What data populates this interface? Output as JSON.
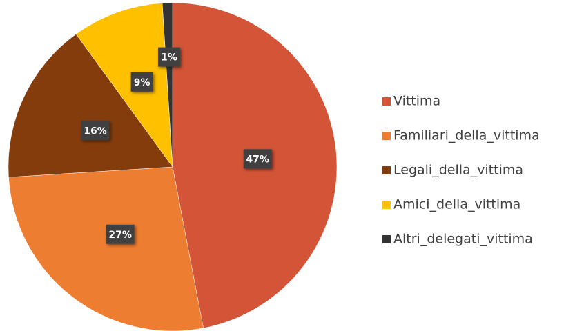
{
  "chart_data": {
    "type": "pie",
    "categories": [
      "Vittima",
      "Familiari_della_vittima",
      "Legali_della_vittima",
      "Amici_della_vittima",
      "Altri_delegati_vittima"
    ],
    "values": [
      47,
      27,
      16,
      9,
      1
    ],
    "value_labels": [
      "47%",
      "27%",
      "16%",
      "9%",
      "1%"
    ],
    "colors": [
      "#d35437",
      "#ed7d31",
      "#843c0c",
      "#ffc000",
      "#333333"
    ],
    "legend": "right"
  }
}
